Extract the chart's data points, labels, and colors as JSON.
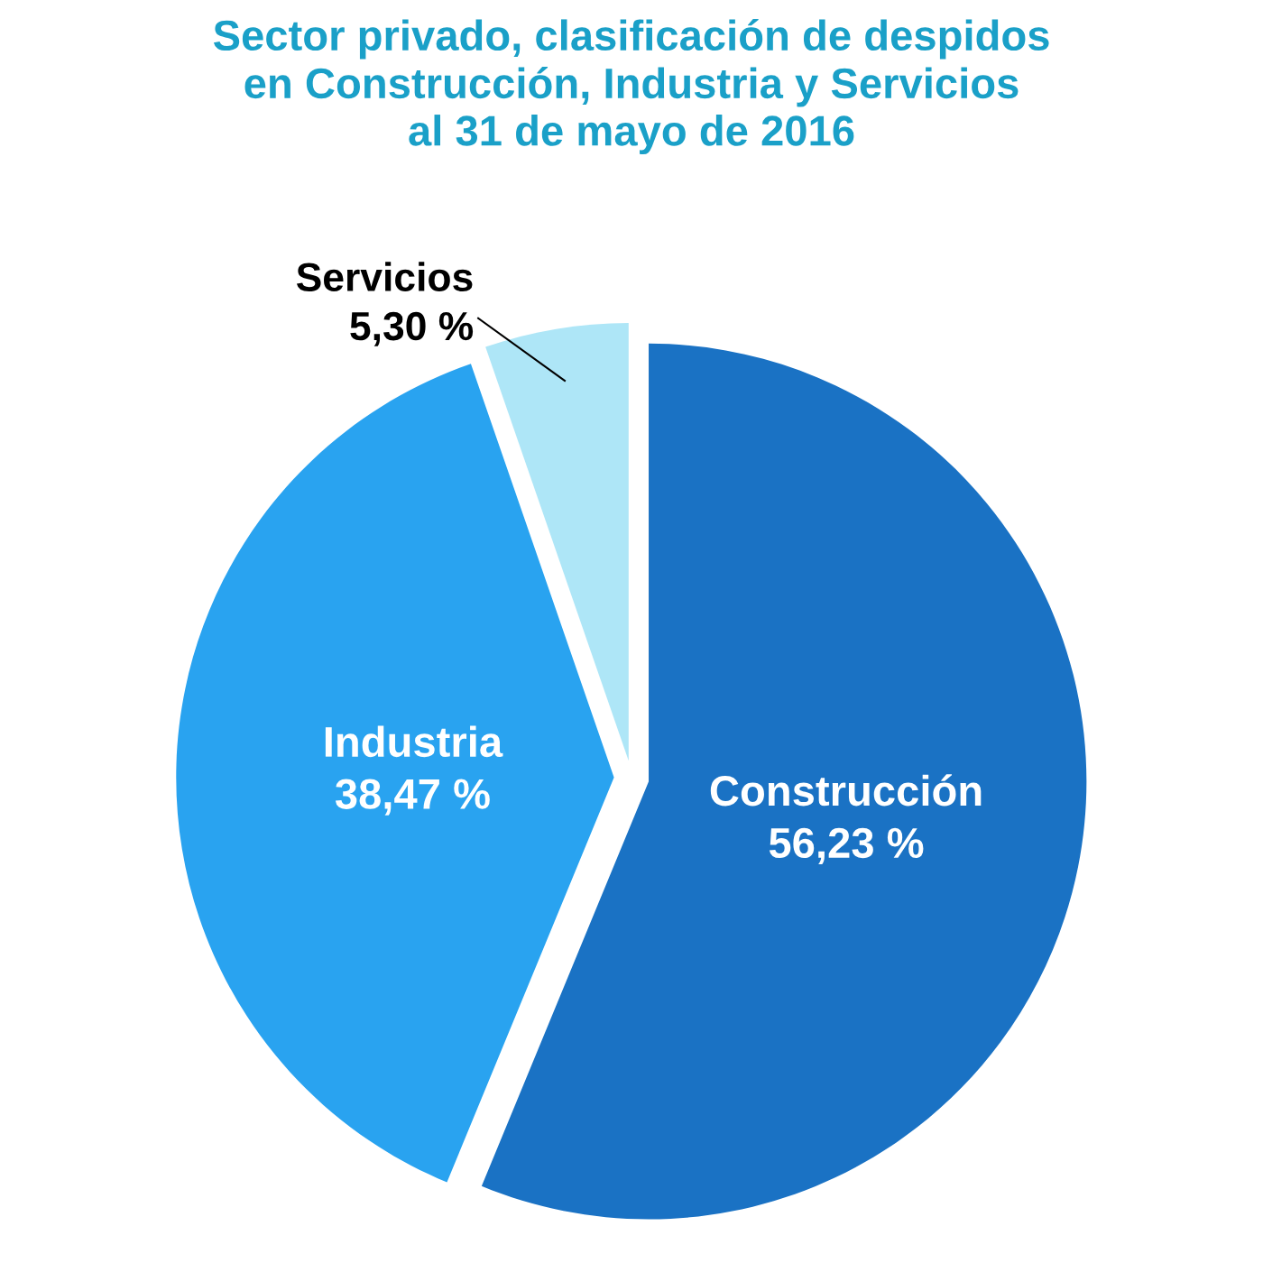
{
  "chart_data": {
    "type": "pie",
    "title": "Sector privado, clasificación de despidos\nen Construcción, Industria y Servicios\nal 31 de mayo de 2016",
    "categories": [
      "Construcción",
      "Industria",
      "Servicios"
    ],
    "values": [
      56.23,
      38.47,
      5.3
    ],
    "value_labels": [
      "56,23 %",
      "38,47 %",
      "5,30 %"
    ],
    "colors": [
      "#1a72c4",
      "#29a3f0",
      "#aee6f7"
    ],
    "legend": false
  }
}
